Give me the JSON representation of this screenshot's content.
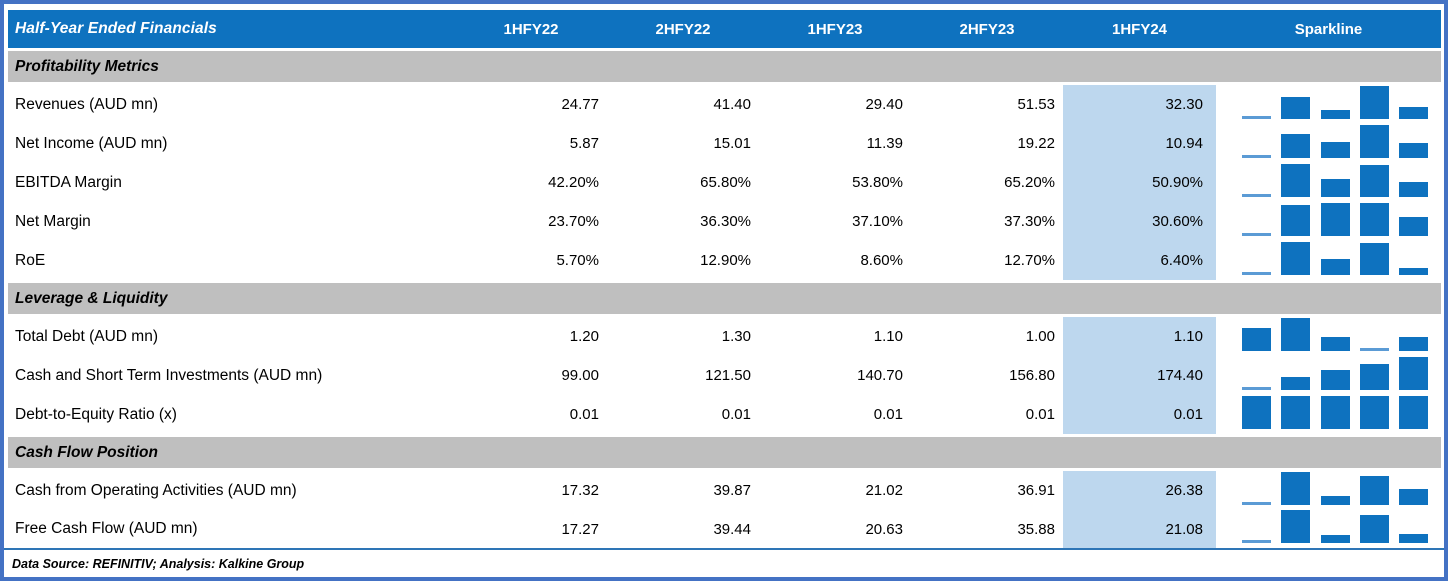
{
  "header": {
    "title": "Half-Year Ended Financials",
    "columns": [
      "1HFY22",
      "2HFY22",
      "1HFY23",
      "2HFY23",
      "1HFY24"
    ],
    "sparkline_label": "Sparkline",
    "highlighted_column": "1HFY24"
  },
  "sections": [
    {
      "label": "Profitability Metrics",
      "rows": [
        {
          "label": "Revenues (AUD mn)",
          "values": [
            "24.77",
            "41.40",
            "29.40",
            "51.53",
            "32.30"
          ]
        },
        {
          "label": "Net Income (AUD mn)",
          "values": [
            "5.87",
            "15.01",
            "11.39",
            "19.22",
            "10.94"
          ]
        },
        {
          "label": "EBITDA Margin",
          "values": [
            "42.20%",
            "65.80%",
            "53.80%",
            "65.20%",
            "50.90%"
          ]
        },
        {
          "label": "Net Margin",
          "values": [
            "23.70%",
            "36.30%",
            "37.10%",
            "37.30%",
            "30.60%"
          ]
        },
        {
          "label": "RoE",
          "values": [
            "5.70%",
            "12.90%",
            "8.60%",
            "12.70%",
            "6.40%"
          ]
        }
      ]
    },
    {
      "label": "Leverage & Liquidity",
      "rows": [
        {
          "label": "Total Debt (AUD mn)",
          "values": [
            "1.20",
            "1.30",
            "1.10",
            "1.00",
            "1.10"
          ]
        },
        {
          "label": "Cash and Short Term Investments (AUD mn)",
          "values": [
            "99.00",
            "121.50",
            "140.70",
            "156.80",
            "174.40"
          ]
        },
        {
          "label": "Debt-to-Equity Ratio (x)",
          "values": [
            "0.01",
            "0.01",
            "0.01",
            "0.01",
            "0.01"
          ]
        }
      ]
    },
    {
      "label": "Cash Flow Position",
      "rows": [
        {
          "label": "Cash from Operating Activities (AUD mn)",
          "values": [
            "17.32",
            "39.87",
            "21.02",
            "36.91",
            "26.38"
          ]
        },
        {
          "label": "Free Cash Flow (AUD mn)",
          "values": [
            "17.27",
            "39.44",
            "20.63",
            "35.88",
            "21.08"
          ]
        }
      ]
    }
  ],
  "footer": {
    "text": "Data Source: REFINITIV; Analysis: Kalkine Group"
  },
  "colors": {
    "header_blue": "#0E72BF",
    "section_band_gray": "#BFBFBF",
    "highlight_column_blue": "#BDD7EE",
    "sparkline_bar_blue": "#0E72BF",
    "sparkline_min_line_blue": "#5B9BD5",
    "frame_border_blue": "#4472C4",
    "footer_rule_blue": "#2E75B6"
  },
  "chart_data": {
    "type": "table",
    "columns": [
      "1HFY22",
      "2HFY22",
      "1HFY23",
      "2HFY23",
      "1HFY24"
    ],
    "highlight_column": "1HFY24",
    "sparkline_type": "bar",
    "sparkline_note": "per-row column sparkline, minimum value drawn as thin light-blue line, equal values drawn as full-height bars",
    "sections": [
      {
        "title": "Profitability Metrics",
        "rows": [
          {
            "label": "Revenues (AUD mn)",
            "values": [
              24.77,
              41.4,
              29.4,
              51.53,
              32.3
            ]
          },
          {
            "label": "Net Income (AUD mn)",
            "values": [
              5.87,
              15.01,
              11.39,
              19.22,
              10.94
            ]
          },
          {
            "label": "EBITDA Margin",
            "values": [
              42.2,
              65.8,
              53.8,
              65.2,
              50.9
            ],
            "unit": "%"
          },
          {
            "label": "Net Margin",
            "values": [
              23.7,
              36.3,
              37.1,
              37.3,
              30.6
            ],
            "unit": "%"
          },
          {
            "label": "RoE",
            "values": [
              5.7,
              12.9,
              8.6,
              12.7,
              6.4
            ],
            "unit": "%"
          }
        ]
      },
      {
        "title": "Leverage & Liquidity",
        "rows": [
          {
            "label": "Total Debt (AUD mn)",
            "values": [
              1.2,
              1.3,
              1.1,
              1.0,
              1.1
            ]
          },
          {
            "label": "Cash and Short Term Investments (AUD mn)",
            "values": [
              99.0,
              121.5,
              140.7,
              156.8,
              174.4
            ]
          },
          {
            "label": "Debt-to-Equity Ratio (x)",
            "values": [
              0.01,
              0.01,
              0.01,
              0.01,
              0.01
            ]
          }
        ]
      },
      {
        "title": "Cash Flow Position",
        "rows": [
          {
            "label": "Cash from Operating Activities (AUD mn)",
            "values": [
              17.32,
              39.87,
              21.02,
              36.91,
              26.38
            ]
          },
          {
            "label": "Free Cash Flow (AUD mn)",
            "values": [
              17.27,
              39.44,
              20.63,
              35.88,
              21.08
            ]
          }
        ]
      }
    ]
  }
}
